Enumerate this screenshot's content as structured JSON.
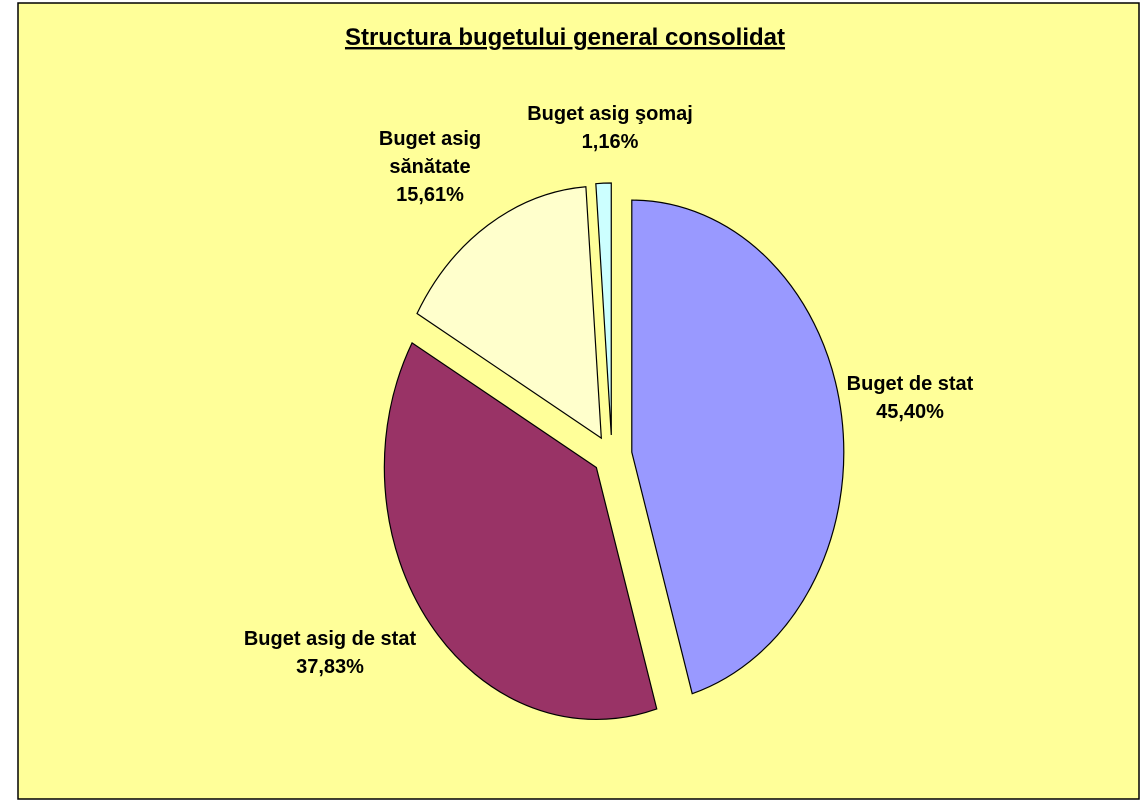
{
  "chart_data": {
    "type": "pie",
    "title": "Structura bugetului general consolidat",
    "categories": [
      "Buget de stat",
      "Buget asig de stat",
      "Buget asig sănătate",
      "Buget asig şomaj"
    ],
    "values": [
      45.4,
      37.83,
      15.61,
      1.16
    ],
    "value_labels": [
      "45,40%",
      "37,83%",
      "15,61%",
      "1,16%"
    ],
    "colors": [
      "#9999ff",
      "#993366",
      "#ffffcc",
      "#ccffff"
    ]
  }
}
